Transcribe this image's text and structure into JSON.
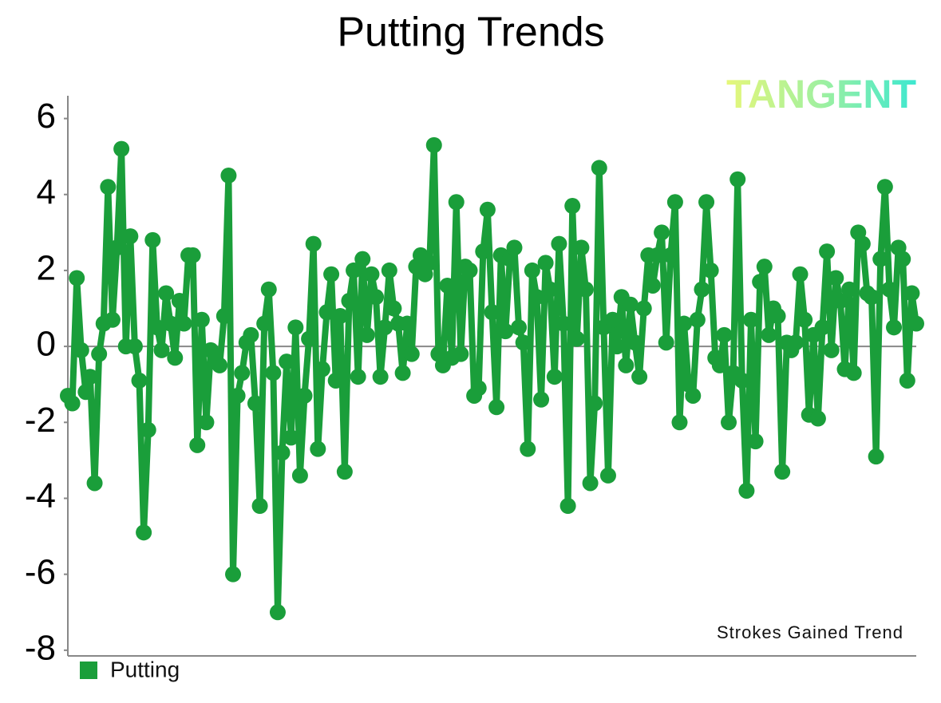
{
  "chart_data": {
    "type": "line",
    "title": "Putting Trends",
    "watermark": "TANGENT",
    "annotation": "Strokes Gained Trend",
    "legend": "bottom-left",
    "series": [
      {
        "name": "Putting",
        "color": "#1a9e3a",
        "values": [
          -1.3,
          -1.5,
          1.8,
          -0.1,
          -1.2,
          -0.8,
          -3.6,
          -0.2,
          0.6,
          4.2,
          0.7,
          2.6,
          5.2,
          0,
          2.9,
          0,
          -0.9,
          -4.9,
          -2.2,
          2.8,
          0.5,
          -0.1,
          1.4,
          0.6,
          -0.3,
          1.2,
          0.6,
          2.4,
          2.4,
          -2.6,
          0.7,
          -2,
          -0.1,
          -0.4,
          -0.5,
          0.8,
          4.5,
          -6,
          -1.3,
          -0.7,
          0.1,
          0.3,
          -1.5,
          -4.2,
          0.6,
          1.5,
          -0.7,
          -7,
          -2.8,
          -0.4,
          -2.4,
          0.5,
          -3.4,
          -1.3,
          0.2,
          2.7,
          -2.7,
          -0.6,
          0.9,
          1.9,
          -0.9,
          0.8,
          -3.3,
          1.2,
          2,
          -0.8,
          2.3,
          0.3,
          1.9,
          1.3,
          -0.8,
          0.5,
          2,
          1,
          0.6,
          -0.7,
          0.6,
          -0.2,
          2.1,
          2.4,
          1.9,
          2.2,
          5.3,
          -0.2,
          -0.5,
          1.6,
          -0.3,
          3.8,
          -0.2,
          2.1,
          2,
          -1.3,
          -1.1,
          2.5,
          3.6,
          0.9,
          -1.6,
          2.4,
          0.4,
          2.3,
          2.6,
          0.5,
          0.1,
          -2.7,
          2,
          1.3,
          -1.4,
          2.2,
          1.5,
          -0.8,
          2.7,
          0.6,
          -4.2,
          3.7,
          0.2,
          2.6,
          1.5,
          -3.6,
          -1.5,
          4.7,
          0.5,
          -3.4,
          0.7,
          0,
          1.3,
          -0.5,
          1.1,
          0.1,
          -0.8,
          1,
          2.4,
          1.6,
          2.4,
          3,
          0.1,
          2.4,
          3.8,
          -2,
          0.6,
          -1,
          -1.3,
          0.7,
          1.5,
          3.8,
          2,
          -0.3,
          -0.5,
          0.3,
          -2,
          -0.7,
          4.4,
          -0.9,
          -3.8,
          0.7,
          -2.5,
          1.7,
          2.1,
          0.3,
          1,
          0.8,
          -3.3,
          0.1,
          -0.1,
          0.1,
          1.9,
          0.7,
          -1.8,
          0.3,
          -1.9,
          0.5,
          2.5,
          -0.1,
          1.8,
          1.2,
          -0.6,
          1.5,
          -0.7,
          3,
          2.7,
          1.4,
          1.3,
          -2.9,
          2.3,
          4.2,
          1.5,
          0.5,
          2.6,
          2.3,
          -0.9,
          1.4,
          0.6
        ]
      }
    ],
    "ylim": [
      -8.15,
      6.6
    ],
    "yticks": [
      -8,
      -6,
      -4,
      -2,
      0,
      2,
      4,
      6
    ]
  }
}
